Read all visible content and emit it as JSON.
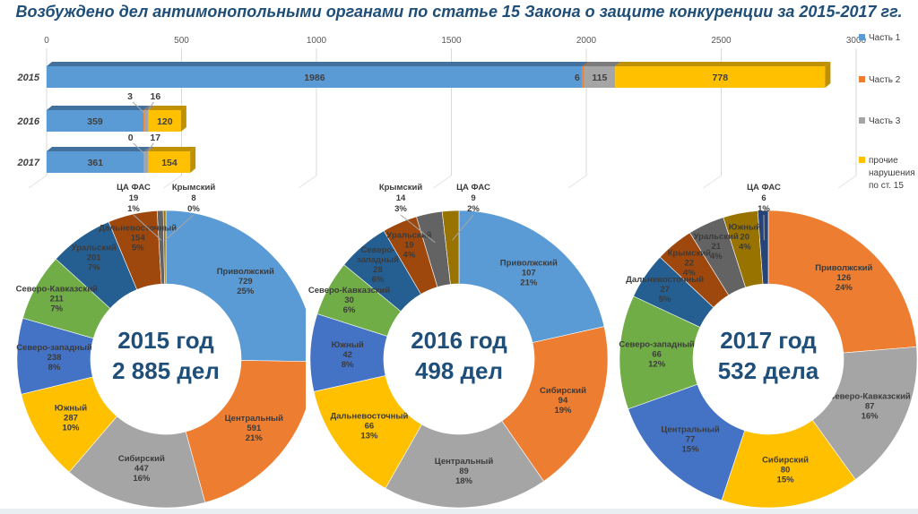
{
  "title": "Возбуждено дел антимонопольными органами по статье 15 Закона о защите конкуренции за 2015-2017 гг.",
  "chart_data": [
    {
      "type": "bar",
      "variant": "stacked-horizontal-3d",
      "categories": [
        "2015",
        "2016",
        "2017"
      ],
      "series": [
        {
          "name": "Часть 1",
          "color": "#5B9BD5",
          "dark": "#41719C",
          "values": [
            1986,
            359,
            361
          ]
        },
        {
          "name": "Часть 2",
          "color": "#ED7D31",
          "dark": "#AE5A21",
          "values": [
            6,
            3,
            0
          ]
        },
        {
          "name": "Часть 3",
          "color": "#A5A5A5",
          "dark": "#7B7B7B",
          "values": [
            115,
            16,
            17
          ]
        },
        {
          "name": "прочие\nнарушения\nпо ст. 15",
          "color": "#FFC000",
          "dark": "#BF9000",
          "values": [
            778,
            120,
            154
          ]
        }
      ],
      "xlim": [
        0,
        3000
      ],
      "xticks": [
        0,
        500,
        1000,
        1500,
        2000,
        2500,
        3000
      ],
      "grid": true,
      "legend_position": "right"
    },
    {
      "type": "pie",
      "variant": "donut",
      "center_label": [
        "2015 год",
        "2 885 дел"
      ],
      "total": 2885,
      "slices": [
        {
          "name": "Приволжский",
          "value": 729,
          "pct": "25%",
          "color": "#5B9BD5"
        },
        {
          "name": "Центральный",
          "value": 591,
          "pct": "21%",
          "color": "#ED7D31"
        },
        {
          "name": "Сибирский",
          "value": 447,
          "pct": "16%",
          "color": "#A5A5A5"
        },
        {
          "name": "Южный",
          "value": 287,
          "pct": "10%",
          "color": "#FFC000"
        },
        {
          "name": "Северо-западный",
          "value": 238,
          "pct": "8%",
          "color": "#4472C4"
        },
        {
          "name": "Северо-Кавказский",
          "value": 211,
          "pct": "7%",
          "color": "#70AD47"
        },
        {
          "name": "Уральский",
          "value": 201,
          "pct": "7%",
          "color": "#255E91"
        },
        {
          "name": "Дальневосточный",
          "value": 154,
          "pct": "5%",
          "color": "#9E480E"
        },
        {
          "name": "ЦА ФАС",
          "value": 19,
          "pct": "1%",
          "color": "#636363",
          "callout_dx": -36
        },
        {
          "name": "Крымский",
          "value": 8,
          "pct": "0%",
          "color": "#997300",
          "callout_dx": 31
        }
      ]
    },
    {
      "type": "pie",
      "variant": "donut",
      "center_label": [
        "2016 год",
        "498 дел"
      ],
      "total": 498,
      "slices": [
        {
          "name": "Приволжский",
          "value": 107,
          "pct": "21%",
          "color": "#5B9BD5"
        },
        {
          "name": "Сибирский",
          "value": 94,
          "pct": "19%",
          "color": "#ED7D31"
        },
        {
          "name": "Центральный",
          "value": 89,
          "pct": "18%",
          "color": "#A5A5A5"
        },
        {
          "name": "Дальневосточный",
          "value": 66,
          "pct": "13%",
          "color": "#FFC000"
        },
        {
          "name": "Южный",
          "value": 42,
          "pct": "8%",
          "color": "#4472C4"
        },
        {
          "name": "Северо-Кавказский",
          "value": 30,
          "pct": "6%",
          "color": "#70AD47"
        },
        {
          "name": "Северо-\nзападный",
          "value": 28,
          "pct": "6%",
          "color": "#255E91"
        },
        {
          "name": "Уральский",
          "value": 19,
          "pct": "4%",
          "color": "#9E480E"
        },
        {
          "name": "Крымский",
          "value": 14,
          "pct": "3%",
          "color": "#636363",
          "callout_dx": -65
        },
        {
          "name": "ЦА ФАС",
          "value": 9,
          "pct": "2%",
          "color": "#997300",
          "callout_dx": 16
        }
      ]
    },
    {
      "type": "pie",
      "variant": "donut",
      "center_label": [
        "2017 год",
        "532 дела"
      ],
      "total": 532,
      "slices": [
        {
          "name": "Приволжский",
          "value": 126,
          "pct": "24%",
          "color": "#ED7D31"
        },
        {
          "name": "Северо-Кавказский",
          "value": 87,
          "pct": "16%",
          "color": "#A5A5A5"
        },
        {
          "name": "Сибирский",
          "value": 80,
          "pct": "15%",
          "color": "#FFC000"
        },
        {
          "name": "Центральный",
          "value": 77,
          "pct": "15%",
          "color": "#4472C4"
        },
        {
          "name": "Северо-западный",
          "value": 66,
          "pct": "12%",
          "color": "#70AD47"
        },
        {
          "name": "Дальневосточный",
          "value": 27,
          "pct": "5%",
          "color": "#255E91"
        },
        {
          "name": "Крымский",
          "value": 22,
          "pct": "4%",
          "color": "#9E480E"
        },
        {
          "name": "Уральский",
          "value": 21,
          "pct": "4%",
          "color": "#636363"
        },
        {
          "name": "Южный",
          "value": 20,
          "pct": "4%",
          "color": "#997300"
        },
        {
          "name": "ЦА ФАС",
          "value": 6,
          "pct": "1%",
          "color": "#264478",
          "callout_dx": -5
        }
      ]
    }
  ],
  "colors": {
    "title_text": "#1F4E79",
    "axis_text": "#595959",
    "bar_label_text": "#3F3F3F",
    "slice_label_text": "#3B3B3B",
    "gridline": "#D9D9D9",
    "leader_line": "#A6A6A6"
  }
}
